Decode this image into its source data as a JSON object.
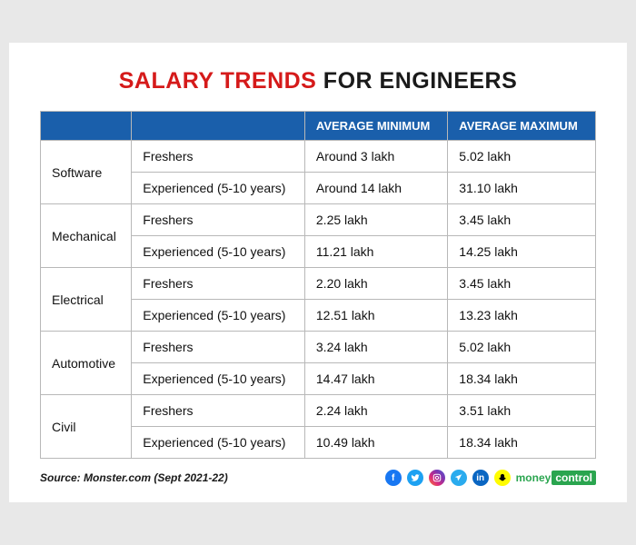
{
  "title": {
    "accent": "SALARY TRENDS",
    "rest": " FOR ENGINEERS"
  },
  "columns": {
    "c0": "",
    "c1": "",
    "c2": "AVERAGE MINIMUM",
    "c3": "AVERAGE MAXIMUM"
  },
  "categories": [
    {
      "name": "Software",
      "rows": [
        {
          "exp": "Freshers",
          "min": "Around 3 lakh",
          "max": "5.02 lakh"
        },
        {
          "exp": "Experienced (5-10 years)",
          "min": "Around 14 lakh",
          "max": "31.10 lakh"
        }
      ]
    },
    {
      "name": "Mechanical",
      "rows": [
        {
          "exp": "Freshers",
          "min": "2.25 lakh",
          "max": "3.45 lakh"
        },
        {
          "exp": "Experienced (5-10 years)",
          "min": "11.21 lakh",
          "max": "14.25 lakh"
        }
      ]
    },
    {
      "name": "Electrical",
      "rows": [
        {
          "exp": "Freshers",
          "min": "2.20 lakh",
          "max": "3.45 lakh"
        },
        {
          "exp": "Experienced (5-10 years)",
          "min": "12.51 lakh",
          "max": "13.23 lakh"
        }
      ]
    },
    {
      "name": "Automotive",
      "rows": [
        {
          "exp": "Freshers",
          "min": "3.24 lakh",
          "max": "5.02 lakh"
        },
        {
          "exp": "Experienced (5-10 years)",
          "min": "14.47 lakh",
          "max": "18.34 lakh"
        }
      ]
    },
    {
      "name": "Civil",
      "rows": [
        {
          "exp": "Freshers",
          "min": "2.24 lakh",
          "max": "3.51 lakh"
        },
        {
          "exp": "Experienced (5-10 years)",
          "min": "10.49 lakh",
          "max": "18.34 lakh"
        }
      ]
    }
  ],
  "source": "Source: Monster.com (Sept 2021-22)",
  "brand": {
    "left": "money",
    "right": "control"
  },
  "colors": {
    "accent_red": "#d51a1a",
    "header_blue": "#1a5fab",
    "border_grey": "#b8b8b8",
    "brand_green": "#2aa54f"
  },
  "socials": [
    "facebook",
    "twitter",
    "instagram",
    "telegram",
    "linkedin",
    "snapchat"
  ]
}
